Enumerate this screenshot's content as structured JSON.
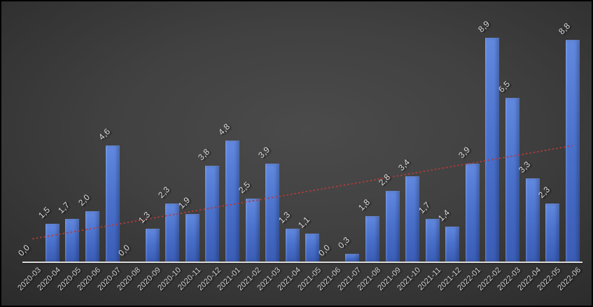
{
  "window": {
    "border_color": "#000000",
    "background_center": "#4b4b4b",
    "background_edge": "#212121"
  },
  "chart_data": {
    "type": "bar",
    "title": "",
    "xlabel": "",
    "ylabel": "",
    "categories": [
      "2020-03",
      "2020-04",
      "2020-05",
      "2020-06",
      "2020-07",
      "2020-08",
      "2020-09",
      "2020-10",
      "2020-11",
      "2020-12",
      "2021-01",
      "2021-02",
      "2021-03",
      "2021-04",
      "2021-05",
      "2021-06",
      "2021-07",
      "2021-08",
      "2021-09",
      "2021-10",
      "2021-11",
      "2021-12",
      "2022-01",
      "2022-02",
      "2022-03",
      "2022-04",
      "2022-05",
      "2022-06"
    ],
    "values": [
      0.0,
      1.5,
      1.7,
      2.0,
      4.6,
      0.0,
      1.3,
      2.3,
      1.9,
      3.8,
      4.8,
      2.5,
      3.9,
      1.3,
      1.1,
      0.0,
      0.3,
      1.8,
      2.8,
      3.4,
      1.7,
      1.4,
      3.9,
      8.9,
      6.5,
      3.3,
      2.3,
      8.8
    ],
    "data_labels": [
      "0,0",
      "1,5",
      "1,7",
      "2,0",
      "4,6",
      "0,0",
      "1,3",
      "2,3",
      "1,9",
      "3,8",
      "4,8",
      "2,5",
      "3,9",
      "1,3",
      "1,1",
      "0,0",
      "0,3",
      "1,8",
      "2,8",
      "3,4",
      "1,7",
      "1,4",
      "3,9",
      "8,9",
      "6,5",
      "3,3",
      "2,3",
      "8,8"
    ],
    "ylim": [
      0,
      9.3
    ],
    "grid": false,
    "legend": false,
    "decimal_separator": ",",
    "bar_color_top": "#6289e0",
    "bar_color_mid": "#4a71cc",
    "bar_color_bottom": "#3a5db6",
    "label_color": "#dcdcdc",
    "axis_label_color": "#cfcfcf",
    "axis_line_color": "#d9d9d9",
    "trendline": {
      "type": "linear",
      "style": "dotted",
      "color": "#b23c3c",
      "start_value": 0.9,
      "end_value": 4.6
    }
  }
}
